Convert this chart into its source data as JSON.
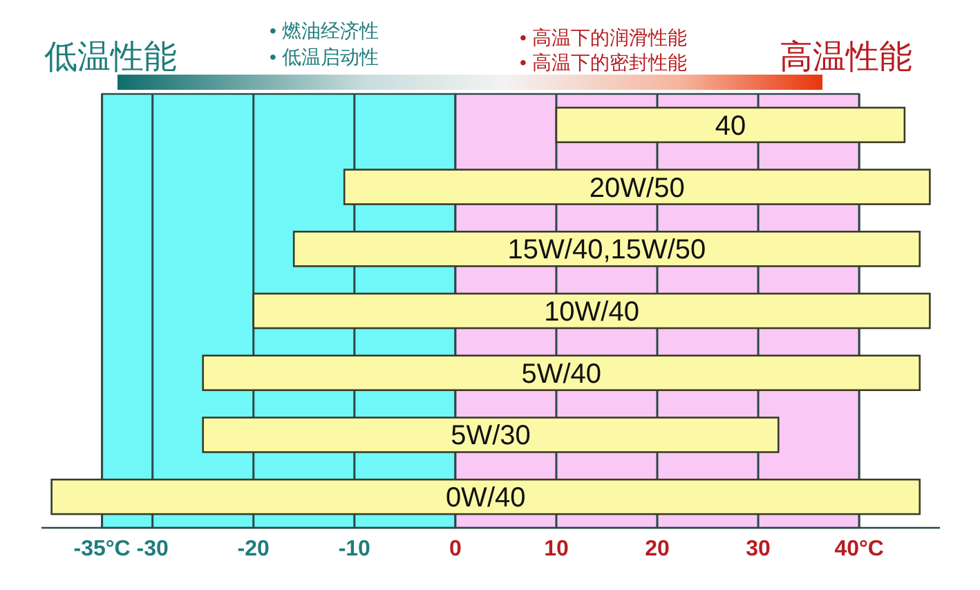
{
  "chart_data": {
    "type": "bar",
    "orientation": "horizontal",
    "categories": [
      "40",
      "20W/50",
      "15W/40,15W/50",
      "10W/40",
      "5W/40",
      "5W/30",
      "0W/40"
    ],
    "base": [
      10,
      -11,
      -16,
      -20,
      -25,
      -25,
      -40
    ],
    "values": [
      34.5,
      58,
      62,
      67,
      71,
      57,
      86
    ],
    "color": "#fbf9a6",
    "xlim": [
      -41,
      48
    ],
    "xticks": [
      {
        "value": -35,
        "label": "-35°C"
      },
      -30,
      -20,
      -10,
      0,
      10,
      20,
      30,
      {
        "value": 40,
        "label": "40°C"
      }
    ],
    "grid": "x",
    "bands": [
      {
        "axis": "x",
        "from": -35,
        "to": 0,
        "color": "#70f7f7"
      },
      {
        "axis": "x",
        "from": 0,
        "to": 40,
        "color": "#f9c8f4"
      }
    ],
    "annotations": [
      "低温性能",
      "• 燃油经济性",
      "• 低温启动性",
      "• 高温下的润滑性能",
      "• 高温下的密封性能",
      "高温性能"
    ]
  }
}
